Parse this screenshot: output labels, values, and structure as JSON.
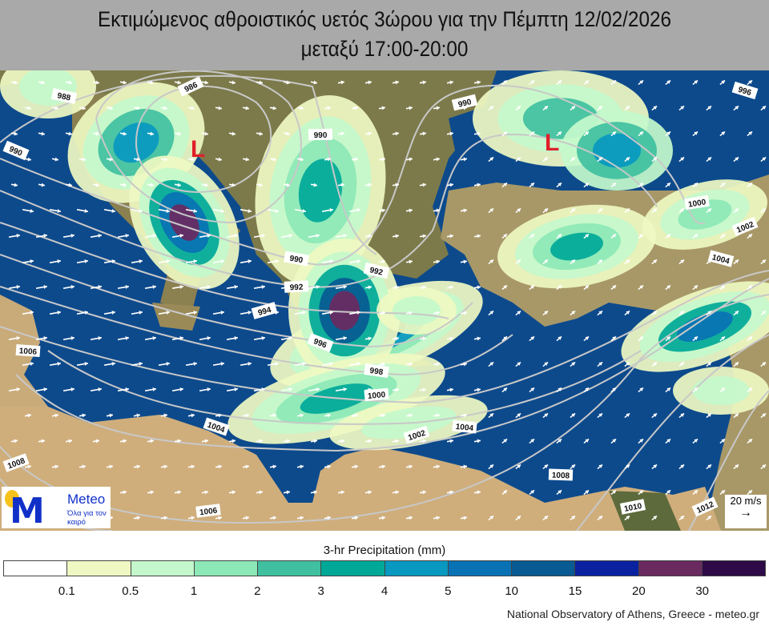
{
  "title": {
    "line1": "Εκτιμώμενος αθροιστικός υετός 3ώρου για την Πέμπτη 12/02/2026",
    "line2": "μεταξύ 17:00-20:00"
  },
  "map": {
    "low_pressure_label": "L",
    "low_color": "#e0202a",
    "sea_color": "#0d4a8c",
    "isobar_color": "#c8c8c8",
    "isobar_labels": [
      "986",
      "988",
      "990",
      "992",
      "994",
      "996",
      "998",
      "1000",
      "1002",
      "1004",
      "1006",
      "1008",
      "1010",
      "1012"
    ],
    "wind_key": {
      "label": "20 m/s",
      "arrow": "→"
    }
  },
  "logo": {
    "brand": "Meteo",
    "tagline": "Όλα για τον καιρό",
    "letter": "M"
  },
  "colorbar": {
    "title": "3-hr Precipitation (mm)",
    "colors": [
      "#ffffff",
      "#eff8c2",
      "#c4f8cc",
      "#8ce8b6",
      "#40c0a0",
      "#00a898",
      "#0898c0",
      "#0872b4",
      "#075a92",
      "#0a22a0",
      "#6a2a60",
      "#2e0a48"
    ],
    "ticks": [
      "0.1",
      "0.5",
      "1",
      "2",
      "3",
      "4",
      "5",
      "10",
      "15",
      "20",
      "30"
    ]
  },
  "footer": "National Observatory of Athens, Greece - meteo.gr"
}
